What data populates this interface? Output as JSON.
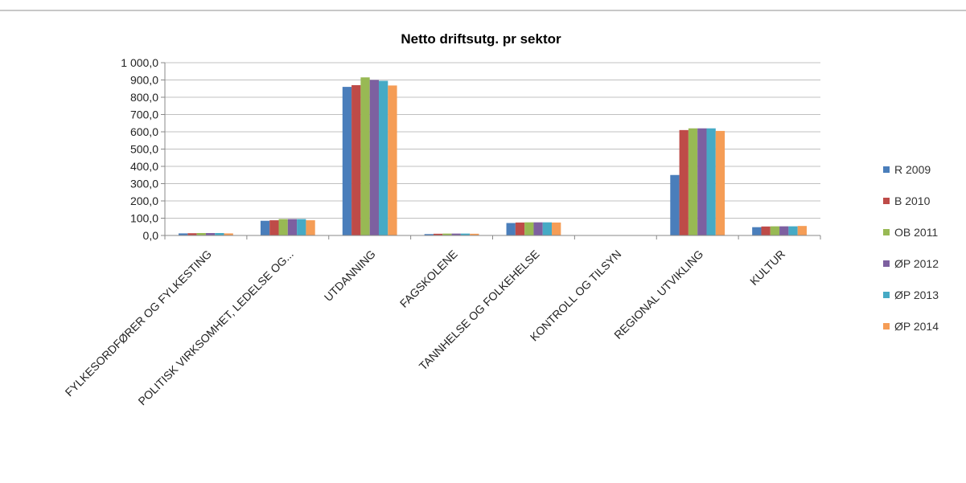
{
  "chart_data": {
    "type": "bar",
    "title": "Netto driftsutg. pr sektor",
    "xlabel": "",
    "ylabel": "",
    "ylim": [
      0,
      1000
    ],
    "yticks": [
      0,
      100,
      200,
      300,
      400,
      500,
      600,
      700,
      800,
      900,
      1000
    ],
    "ytick_labels": [
      "0,0",
      "100,0",
      "200,0",
      "300,0",
      "400,0",
      "500,0",
      "600,0",
      "700,0",
      "800,0",
      "900,0",
      "1 000,0"
    ],
    "grid": true,
    "legend_position": "right",
    "categories": [
      "FYLKESORDFØRER OG FYLKESTING",
      "POLITISK VIRKSOMHET, LEDELSE OG...",
      "UTDANNING",
      "FAGSKOLENE",
      "TANNHELSE OG FOLKEHELSE",
      "KONTROLL OG TILSYN",
      "REGIONAL UTVIKLING",
      "KULTUR"
    ],
    "series": [
      {
        "name": "R 2009",
        "color": "#4a7ebb",
        "values": [
          12,
          85,
          860,
          8,
          72,
          0,
          350,
          48
        ]
      },
      {
        "name": "B 2010",
        "color": "#be4b48",
        "values": [
          13,
          88,
          870,
          10,
          75,
          0,
          610,
          52
        ]
      },
      {
        "name": "OB 2011",
        "color": "#98b954",
        "values": [
          14,
          95,
          915,
          11,
          76,
          0,
          620,
          53
        ]
      },
      {
        "name": "ØP 2012",
        "color": "#7d60a0",
        "values": [
          14,
          95,
          900,
          11,
          76,
          0,
          620,
          53
        ]
      },
      {
        "name": "ØP 2013",
        "color": "#46aac5",
        "values": [
          14,
          95,
          895,
          11,
          76,
          0,
          620,
          53
        ]
      },
      {
        "name": "ØP 2014",
        "color": "#f59d56",
        "values": [
          12,
          88,
          868,
          10,
          75,
          0,
          605,
          55
        ]
      }
    ]
  }
}
